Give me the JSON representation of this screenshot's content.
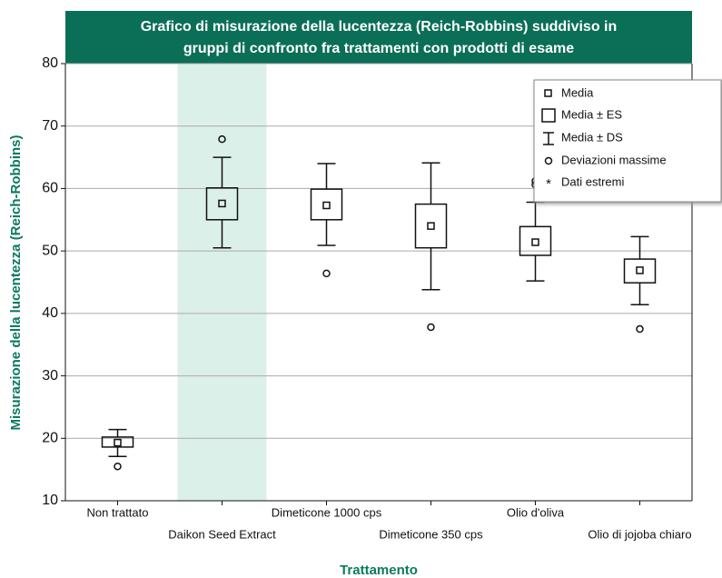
{
  "chart_data": {
    "type": "box",
    "title": [
      "Grafico di misurazione della lucentezza (Reich-Robbins) suddiviso in",
      "gruppi di confronto fra trattamenti con prodotti di esame"
    ],
    "xlabel": "Trattamento",
    "ylabel": "Misurazione della lucentezza (Reich-Robbins)",
    "ylim": [
      10,
      80
    ],
    "yticks": [
      10,
      20,
      30,
      40,
      50,
      60,
      70,
      80
    ],
    "grid": true,
    "highlight_index": 1,
    "highlight_color": "#dcf0ea",
    "header_color": "#0b6e57",
    "label_color": "#0b7a5e",
    "categories": [
      "Non trattato",
      "Daikon Seed Extract",
      "Dimeticone 1000 cps",
      "Dimeticone 350 cps",
      "Olio d'oliva",
      "Olio di jojoba chiaro"
    ],
    "groups": [
      {
        "mean": 19.3,
        "se_low": 18.6,
        "se_high": 20.2,
        "sd_low": 17.1,
        "sd_high": 21.4,
        "outliers": [
          15.5
        ]
      },
      {
        "mean": 57.6,
        "se_low": 55.0,
        "se_high": 60.1,
        "sd_low": 50.5,
        "sd_high": 65.0,
        "outliers": [
          67.9
        ]
      },
      {
        "mean": 57.3,
        "se_low": 55.0,
        "se_high": 59.9,
        "sd_low": 50.9,
        "sd_high": 64.0,
        "outliers": [
          46.4
        ]
      },
      {
        "mean": 54.0,
        "se_low": 50.5,
        "se_high": 57.5,
        "sd_low": 43.8,
        "sd_high": 64.1,
        "outliers": [
          37.8
        ]
      },
      {
        "mean": 51.4,
        "se_low": 49.3,
        "se_high": 53.9,
        "sd_low": 45.2,
        "sd_high": 57.8,
        "outliers": [
          61.2,
          60.6
        ]
      },
      {
        "mean": 46.9,
        "se_low": 44.9,
        "se_high": 48.7,
        "sd_low": 41.4,
        "sd_high": 52.3,
        "outliers": [
          37.5
        ]
      }
    ],
    "legend": [
      "Media",
      "Media ± ES",
      "Media ± DS",
      "Deviazioni massime",
      "Dati estremi"
    ],
    "legend_position": "upper right"
  }
}
